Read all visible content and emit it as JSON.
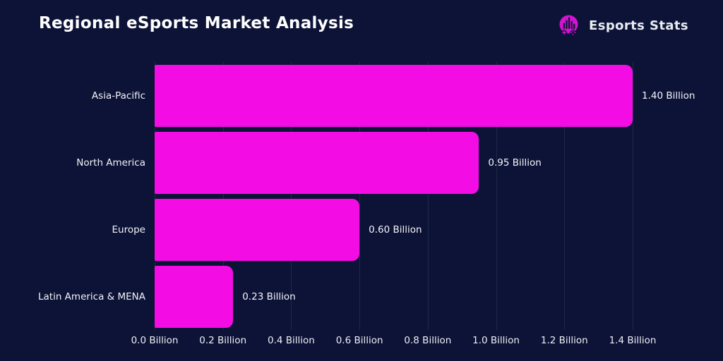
{
  "header": {
    "title": "Regional eSports Market Analysis",
    "brand": {
      "name": "Esports Stats",
      "icon": "bar-chart-gamepad-icon"
    }
  },
  "chart_data": {
    "type": "bar",
    "orientation": "horizontal",
    "title": "Regional eSports Market Analysis",
    "categories": [
      "Asia-Pacific",
      "North America",
      "Europe",
      "Latin America & MENA"
    ],
    "values": [
      1.4,
      0.95,
      0.6,
      0.23
    ],
    "value_labels": [
      "1.40 Billion",
      "0.95 Billion",
      "0.60 Billion",
      "0.23 Billion"
    ],
    "unit": "Billion",
    "xlim": [
      0,
      1.4
    ],
    "x_ticks": [
      {
        "value": 0.0,
        "label": "0.0 Billion"
      },
      {
        "value": 0.2,
        "label": "0.2 Billion"
      },
      {
        "value": 0.4,
        "label": "0.4 Billion"
      },
      {
        "value": 0.6,
        "label": "0.6 Billion"
      },
      {
        "value": 0.8,
        "label": "0.8 Billion"
      },
      {
        "value": 1.0,
        "label": "1.0 Billion"
      },
      {
        "value": 1.2,
        "label": "1.2 Billion"
      },
      {
        "value": 1.4,
        "label": "1.4 Billion"
      }
    ],
    "grid": "vertical",
    "legend": "none"
  },
  "colors": {
    "background": "#0d1337",
    "bar": "#f30de4",
    "gridline": "#1e2847",
    "text": "#ffffff",
    "logo_accent": "#d214d2"
  }
}
